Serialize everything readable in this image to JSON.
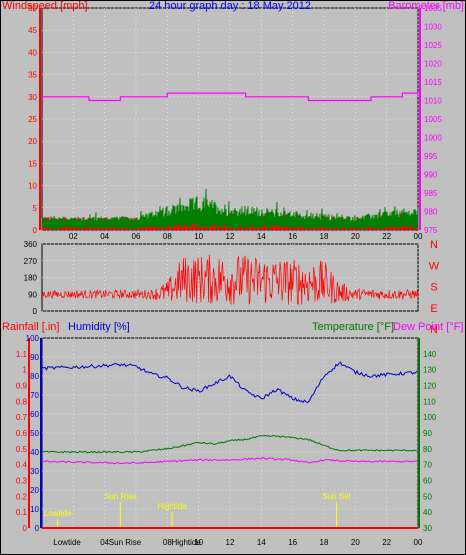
{
  "colors": {
    "background": "#c0c0c0",
    "plot_background": "#c0c0c0",
    "wind": "#ff0000",
    "gust": "#cc0000",
    "wind_avg": "#008000",
    "barometer": "#ff00ff",
    "direction": "#ff0000",
    "humidity": "#0000cc",
    "temperature": "#007700",
    "dewpoint": "#ff00ff",
    "rainfall": "#ff0000",
    "events": "#ffff00",
    "title": "#0000ff",
    "grid": "#ffffff"
  },
  "chart_data": [
    {
      "id": "wind-baro",
      "type": "line",
      "title": "24 hour graph day : 18 May 2012",
      "ylabel_left": "Windspeed [mph]",
      "ylabel_right": "Barometer [mb]",
      "ylim_left": [
        0,
        50
      ],
      "ylim_right": [
        975,
        1035
      ],
      "yticks_left": [
        "0",
        "5",
        "10",
        "15",
        "20",
        "25",
        "30",
        "35",
        "40",
        "45",
        "50"
      ],
      "yticks_right": [
        "975",
        "980",
        "985",
        "990",
        "995",
        "1000",
        "1005",
        "1010",
        "1015",
        "1020",
        "1025",
        "1030",
        "1035"
      ],
      "xticks": [
        "02",
        "04",
        "06",
        "08",
        "10",
        "12",
        "14",
        "16",
        "18",
        "20",
        "22",
        "00"
      ],
      "xlim_hours": [
        0,
        24
      ],
      "barometer": {
        "name": "Barometer",
        "x": [
          0,
          3,
          5,
          8,
          13,
          17,
          21,
          23,
          24
        ],
        "y": [
          1011,
          1010,
          1011,
          1012,
          1011,
          1010,
          1011,
          1012,
          1011
        ]
      },
      "wind_profile": {
        "x": [
          0,
          6,
          8,
          10,
          12,
          14,
          16,
          18,
          20,
          22,
          24
        ],
        "avg": [
          2,
          2,
          3,
          4,
          3,
          3,
          2.5,
          2,
          2,
          2.5,
          3
        ],
        "gust_max": [
          4,
          4,
          7,
          11,
          8,
          7,
          6,
          5,
          4,
          6,
          7
        ]
      }
    },
    {
      "id": "wind-direction",
      "type": "scatter",
      "ylim": [
        0,
        360
      ],
      "yticks": [
        "0",
        "90",
        "180",
        "270",
        "360"
      ],
      "right_labels": [
        "N",
        "W",
        "S",
        "E",
        "N"
      ],
      "xlim_hours": [
        0,
        24
      ],
      "profile": {
        "x": [
          0,
          7,
          8,
          9,
          12,
          15,
          18,
          19,
          20,
          24
        ],
        "center": [
          90,
          90,
          100,
          170,
          170,
          160,
          150,
          100,
          90,
          90
        ],
        "spread": [
          20,
          25,
          60,
          130,
          140,
          130,
          120,
          60,
          30,
          25
        ]
      }
    },
    {
      "id": "temp-hum",
      "type": "line",
      "ylabel_left1": "Rainfall [.in]",
      "ylabel_left2": "Humidity [%]",
      "ylabel_right1": "Temperature [°F]",
      "ylabel_right2": "Dew Point [°F]",
      "ylim_rain": [
        0,
        1.2
      ],
      "ylim_humidity": [
        0,
        100
      ],
      "ylim_temp": [
        30,
        150
      ],
      "yticks_rain": [
        "0",
        "0.1",
        "0.2",
        "0.3",
        "0.4",
        "0.5",
        "0.6",
        "0.7",
        "0.8",
        "0.9",
        "1",
        "1.1"
      ],
      "yticks_humidity": [
        "0",
        "10",
        "20",
        "30",
        "40",
        "50",
        "60",
        "70",
        "80",
        "90",
        "100"
      ],
      "yticks_temp": [
        "30",
        "40",
        "50",
        "60",
        "70",
        "80",
        "90",
        "100",
        "110",
        "120",
        "130",
        "140"
      ],
      "xticks": [
        "Lowtide",
        "04",
        "Sun Rise",
        "08",
        "Hightide",
        "10",
        "12",
        "14",
        "16",
        "18",
        "20",
        "22",
        "00"
      ],
      "humidity": {
        "name": "Humidity",
        "x": [
          0,
          3,
          5,
          6,
          7,
          8,
          9,
          10,
          11,
          12,
          13,
          14,
          15,
          16,
          17,
          18,
          19,
          20,
          21,
          24
        ],
        "y": [
          84,
          85,
          86,
          85,
          81,
          79,
          74,
          72,
          76,
          80,
          72,
          68,
          73,
          68,
          66,
          80,
          87,
          82,
          80,
          82
        ]
      },
      "temperature": {
        "name": "Temperature",
        "x": [
          0,
          6,
          8,
          9,
          10,
          11,
          12,
          13,
          14,
          15,
          16,
          17,
          18,
          19,
          20,
          24
        ],
        "y": [
          78,
          78,
          80,
          82,
          84,
          83,
          85,
          86,
          88,
          88,
          87,
          86,
          82,
          79,
          79,
          79
        ]
      },
      "dewpoint": {
        "name": "Dew Point",
        "x": [
          0,
          5,
          6,
          8,
          10,
          12,
          14,
          16,
          17,
          18,
          20,
          24
        ],
        "y": [
          72,
          71,
          71,
          72,
          73,
          73,
          74,
          73,
          71,
          73,
          72,
          72
        ]
      },
      "rainfall": {
        "name": "Rainfall",
        "x": [
          0,
          24
        ],
        "y": [
          0,
          0
        ]
      },
      "events": [
        {
          "label": "Lowtide",
          "hour": 1.0
        },
        {
          "label": "Sun Rise",
          "hour": 5.0
        },
        {
          "label": "Hightide",
          "hour": 8.3
        },
        {
          "label": "Sun Set",
          "hour": 18.8
        }
      ]
    }
  ]
}
